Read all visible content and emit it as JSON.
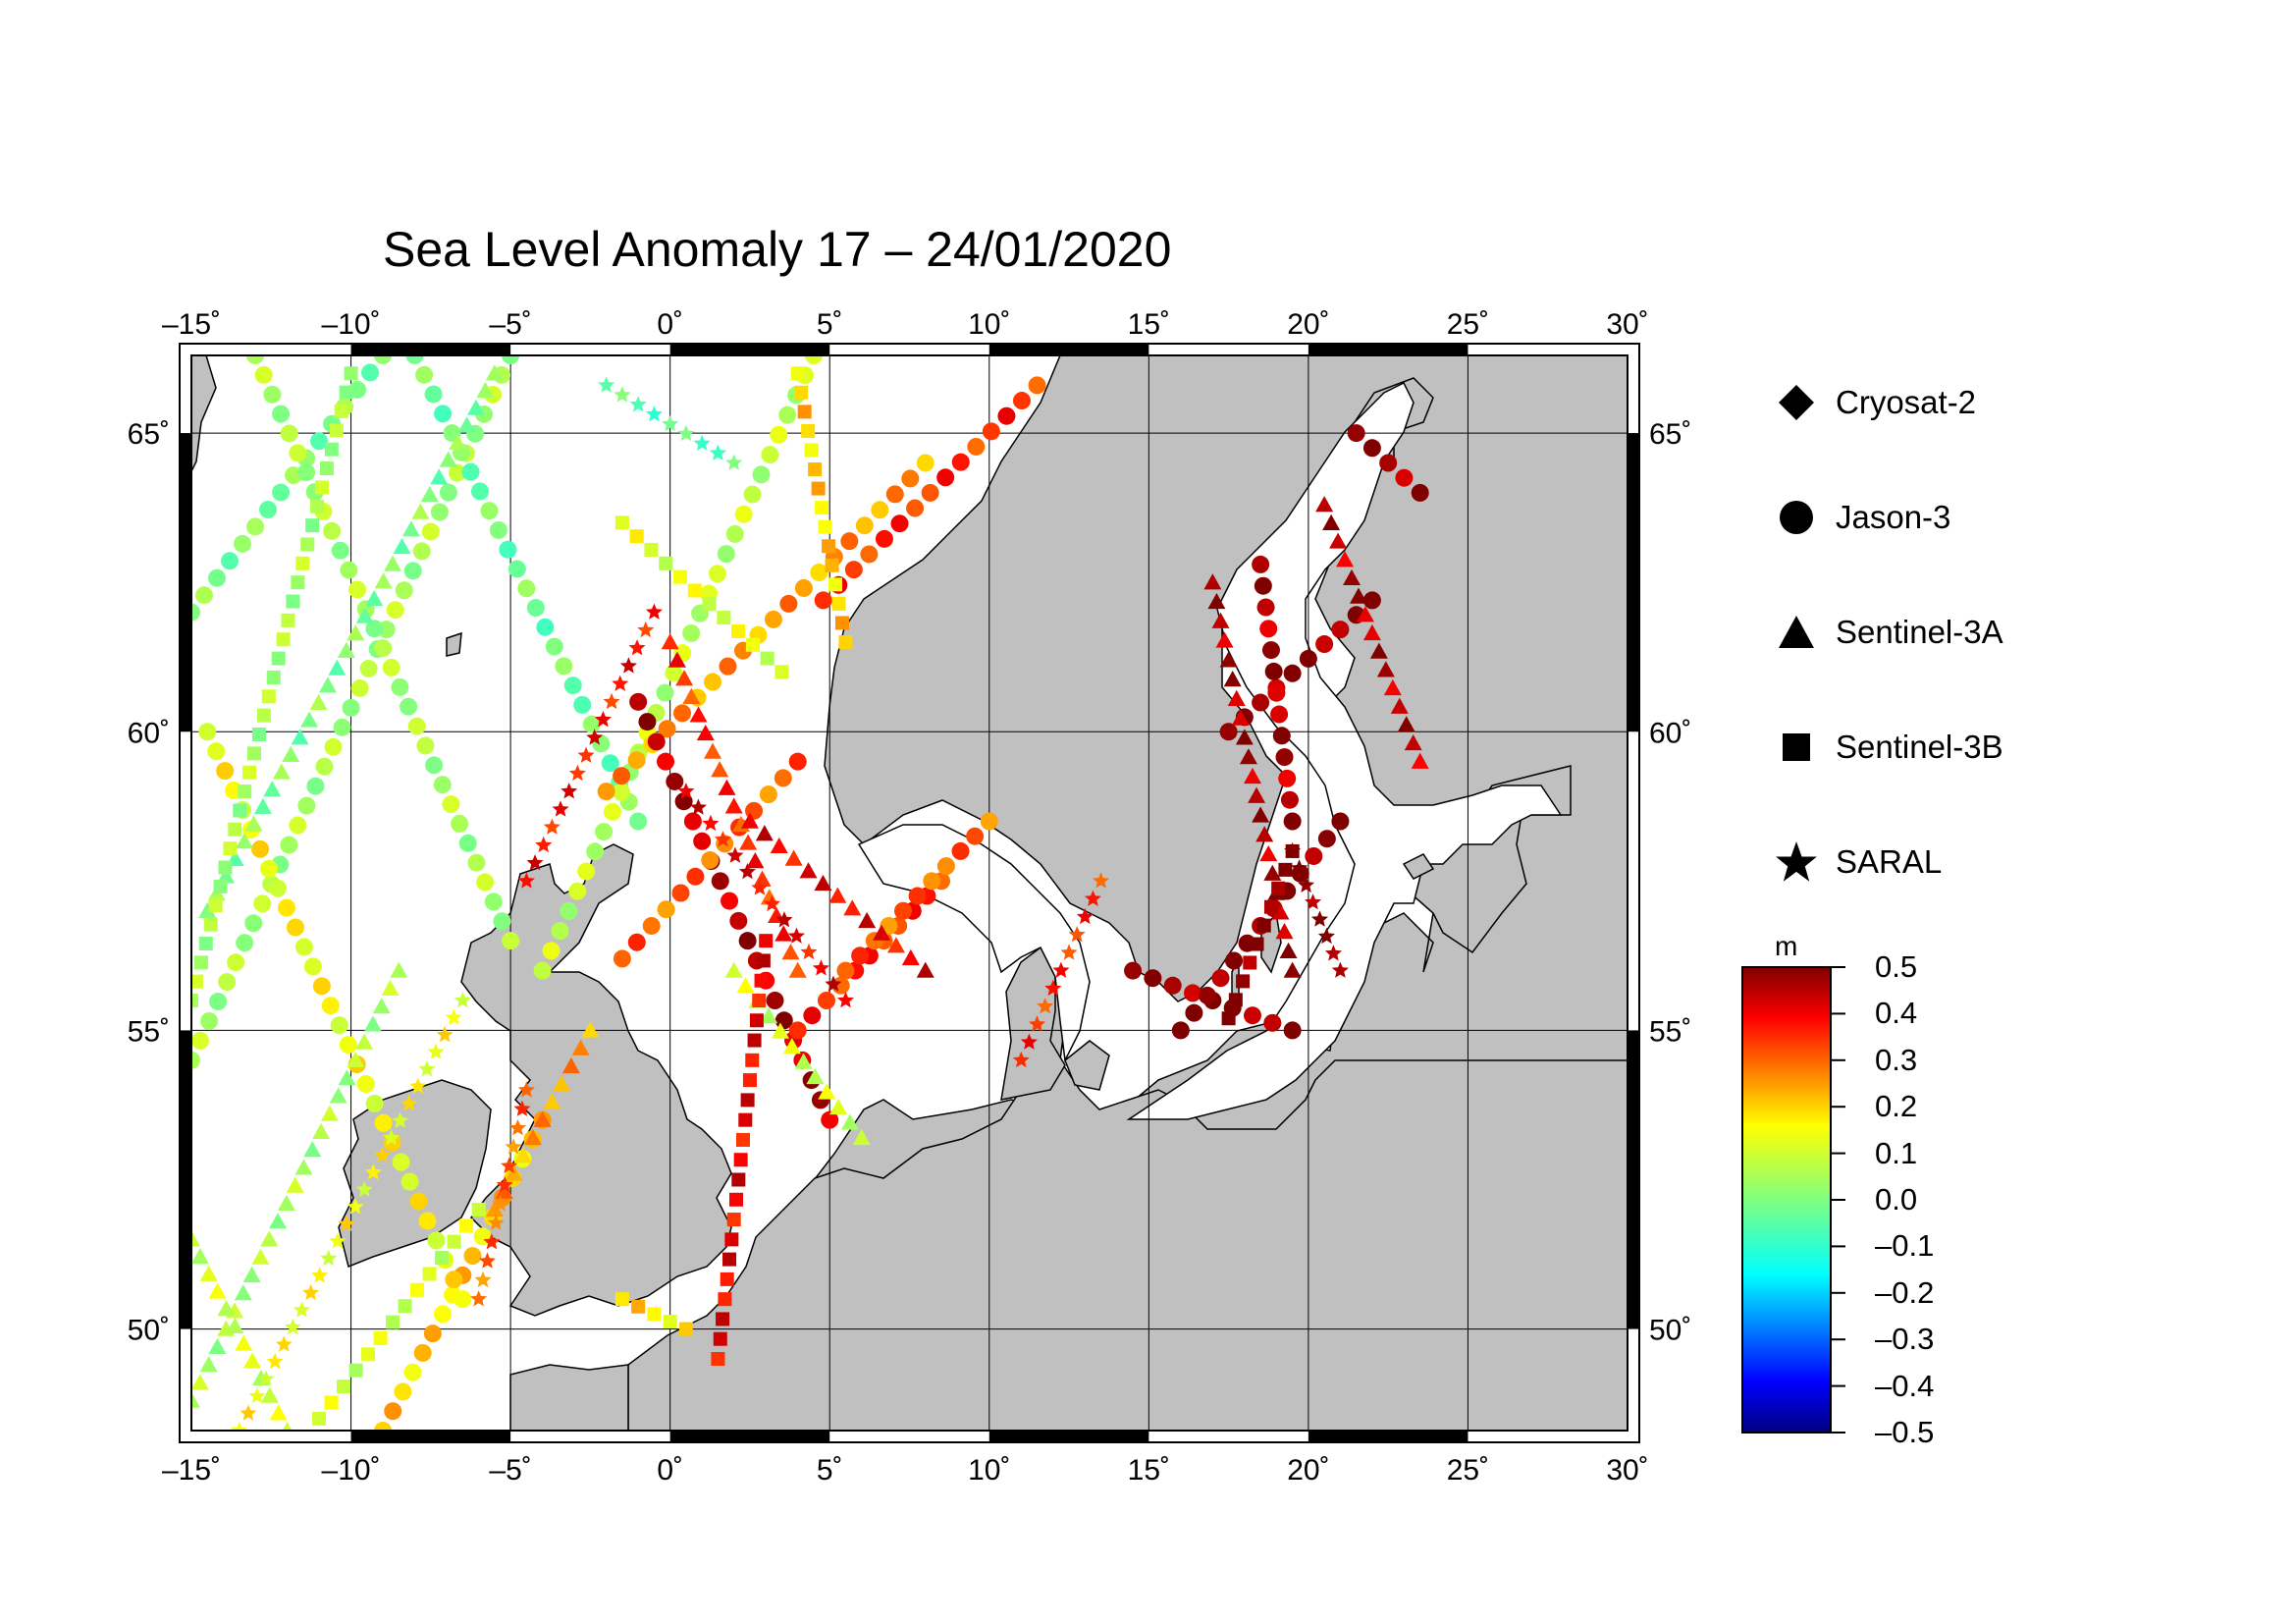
{
  "title": "Sea Level Anomaly 17 – 24/01/2020",
  "map": {
    "lon_range": [
      -15,
      30
    ],
    "lat_range": [
      48.3,
      66.3
    ],
    "lon_ticks": [
      {
        "v": -15,
        "label": "–15˚"
      },
      {
        "v": -10,
        "label": "–10˚"
      },
      {
        "v": -5,
        "label": "–5˚"
      },
      {
        "v": 0,
        "label": "0˚"
      },
      {
        "v": 5,
        "label": "5˚"
      },
      {
        "v": 10,
        "label": "10˚"
      },
      {
        "v": 15,
        "label": "15˚"
      },
      {
        "v": 20,
        "label": "20˚"
      },
      {
        "v": 25,
        "label": "25˚"
      },
      {
        "v": 30,
        "label": "30˚"
      }
    ],
    "lat_ticks": [
      {
        "v": 50,
        "label": "50˚"
      },
      {
        "v": 55,
        "label": "55˚"
      },
      {
        "v": 60,
        "label": "60˚"
      },
      {
        "v": 65,
        "label": "65˚"
      }
    ],
    "land_color": "#c0c0c0",
    "sea_color": "#ffffff"
  },
  "legend": {
    "items": [
      {
        "symbol": "diamond",
        "label": "Cryosat-2"
      },
      {
        "symbol": "circle",
        "label": "Jason-3"
      },
      {
        "symbol": "triangle",
        "label": "Sentinel-3A"
      },
      {
        "symbol": "square",
        "label": "Sentinel-3B"
      },
      {
        "symbol": "star",
        "label": "SARAL"
      }
    ]
  },
  "colorbar": {
    "unit": "m",
    "min": -0.5,
    "max": 0.5,
    "ticks": [
      "0.5",
      "0.4",
      "0.3",
      "0.2",
      "0.1",
      "0.0",
      "–0.1",
      "–0.2",
      "–0.3",
      "–0.4",
      "–0.5"
    ]
  },
  "chart_data": {
    "type": "scatter",
    "title": "Sea Level Anomaly 17 – 24/01/2020",
    "xlim": [
      -15,
      30
    ],
    "ylim": [
      48.3,
      66.3
    ],
    "color_scale": {
      "unit": "m",
      "range": [
        -0.5,
        0.5
      ]
    },
    "tracks": [
      {
        "mission": "Jason-3",
        "from": [
          -15,
          54.5
        ],
        "to": [
          -5,
          66.3
        ],
        "sla": 0.05
      },
      {
        "mission": "Jason-3",
        "from": [
          -15,
          62.0
        ],
        "to": [
          -9,
          66.3
        ],
        "sla": 0.0
      },
      {
        "mission": "Jason-3",
        "from": [
          -13,
          66.3
        ],
        "to": [
          -5,
          56.5
        ],
        "sla": 0.05
      },
      {
        "mission": "Jason-3",
        "from": [
          -8,
          66.3
        ],
        "to": [
          -1,
          58.5
        ],
        "sla": -0.02
      },
      {
        "mission": "Jason-3",
        "from": [
          -4,
          56.0
        ],
        "to": [
          4.5,
          66.3
        ],
        "sla": 0.08
      },
      {
        "mission": "Jason-3",
        "from": [
          -9,
          48.3
        ],
        "to": [
          -4,
          53.5
        ],
        "sla": 0.2
      },
      {
        "mission": "Jason-3",
        "from": [
          -6.5,
          50.5
        ],
        "to": [
          -14.5,
          60.0
        ],
        "sla": 0.15
      },
      {
        "mission": "Jason-3",
        "from": [
          4.8,
          62.2
        ],
        "to": [
          11.5,
          65.8
        ],
        "sla": 0.35
      },
      {
        "mission": "Jason-3",
        "from": [
          -2,
          59.0
        ],
        "to": [
          8,
          64.5
        ],
        "sla": 0.25
      },
      {
        "mission": "Jason-3",
        "from": [
          -1,
          60.5
        ],
        "to": [
          5,
          53.5
        ],
        "sla": 0.45
      },
      {
        "mission": "Jason-3",
        "from": [
          -1.5,
          56.2
        ],
        "to": [
          4.0,
          59.5
        ],
        "sla": 0.3
      },
      {
        "mission": "Jason-3",
        "from": [
          4,
          55.0
        ],
        "to": [
          8.5,
          57.5
        ],
        "sla": 0.35
      },
      {
        "mission": "Jason-3",
        "from": [
          5.5,
          56.0
        ],
        "to": [
          10,
          58.5
        ],
        "sla": 0.3
      },
      {
        "mission": "Jason-3",
        "from": [
          14.5,
          56.0
        ],
        "to": [
          19.5,
          55.0
        ],
        "sla": 0.48
      },
      {
        "mission": "Jason-3",
        "from": [
          16,
          55.0
        ],
        "to": [
          21,
          58.5
        ],
        "sla": 0.5
      },
      {
        "mission": "Jason-3",
        "from": [
          17.5,
          60.0
        ],
        "to": [
          22,
          62.2
        ],
        "sla": 0.48
      },
      {
        "mission": "Jason-3",
        "from": [
          18.5,
          62.8
        ],
        "to": [
          19.5,
          58.5
        ],
        "sla": 0.46
      },
      {
        "mission": "Jason-3",
        "from": [
          21.5,
          65.0
        ],
        "to": [
          23.5,
          64.0
        ],
        "sla": 0.48
      },
      {
        "mission": "Sentinel-3A",
        "from": [
          -15,
          48.8
        ],
        "to": [
          -8.5,
          56.0
        ],
        "sla": 0.05
      },
      {
        "mission": "Sentinel-3A",
        "from": [
          -12,
          48.3
        ],
        "to": [
          -15,
          51.5
        ],
        "sla": 0.1
      },
      {
        "mission": "Sentinel-3A",
        "from": [
          -14.5,
          57.0
        ],
        "to": [
          -5.5,
          66.0
        ],
        "sla": 0.0
      },
      {
        "mission": "Sentinel-3A",
        "from": [
          0,
          61.5
        ],
        "to": [
          4,
          56.0
        ],
        "sla": 0.35
      },
      {
        "mission": "Sentinel-3A",
        "from": [
          2.5,
          58.5
        ],
        "to": [
          8,
          56.0
        ],
        "sla": 0.4
      },
      {
        "mission": "Sentinel-3A",
        "from": [
          2,
          56.0
        ],
        "to": [
          6,
          53.2
        ],
        "sla": 0.1
      },
      {
        "mission": "Sentinel-3A",
        "from": [
          17.0,
          62.5
        ],
        "to": [
          19.5,
          56.0
        ],
        "sla": 0.46
      },
      {
        "mission": "Sentinel-3A",
        "from": [
          20.5,
          63.8
        ],
        "to": [
          23.5,
          59.5
        ],
        "sla": 0.45
      },
      {
        "mission": "Sentinel-3A",
        "from": [
          -5.5,
          52.0
        ],
        "to": [
          -2.5,
          55.0
        ],
        "sla": 0.25
      },
      {
        "mission": "Sentinel-3B",
        "from": [
          -15,
          55.5
        ],
        "to": [
          -10,
          66.0
        ],
        "sla": 0.05
      },
      {
        "mission": "Sentinel-3B",
        "from": [
          -11,
          48.5
        ],
        "to": [
          -6,
          52.0
        ],
        "sla": 0.1
      },
      {
        "mission": "Sentinel-3B",
        "from": [
          3,
          56.5
        ],
        "to": [
          1.5,
          49.5
        ],
        "sla": 0.4
      },
      {
        "mission": "Sentinel-3B",
        "from": [
          5.5,
          61.5
        ],
        "to": [
          4,
          66.0
        ],
        "sla": 0.2
      },
      {
        "mission": "Sentinel-3B",
        "from": [
          -1.5,
          63.5
        ],
        "to": [
          3.5,
          61.0
        ],
        "sla": 0.12
      },
      {
        "mission": "Sentinel-3B",
        "from": [
          -1.5,
          50.5
        ],
        "to": [
          0.5,
          50.0
        ],
        "sla": 0.18
      },
      {
        "mission": "Sentinel-3B",
        "from": [
          17.5,
          55.2
        ],
        "to": [
          19.5,
          58.0
        ],
        "sla": 0.5
      },
      {
        "mission": "SARAL",
        "from": [
          -4.5,
          57.5
        ],
        "to": [
          -0.5,
          62.0
        ],
        "sla": 0.38
      },
      {
        "mission": "SARAL",
        "from": [
          0.5,
          59.0
        ],
        "to": [
          5.5,
          55.5
        ],
        "sla": 0.4
      },
      {
        "mission": "SARAL",
        "from": [
          -13.5,
          48.3
        ],
        "to": [
          -6.5,
          55.5
        ],
        "sla": 0.15
      },
      {
        "mission": "SARAL",
        "from": [
          -4.5,
          54.0
        ],
        "to": [
          -6.0,
          50.5
        ],
        "sla": 0.3
      },
      {
        "mission": "SARAL",
        "from": [
          19.5,
          58.0
        ],
        "to": [
          21.0,
          56.0
        ],
        "sla": 0.5
      },
      {
        "mission": "SARAL",
        "from": [
          11,
          54.5
        ],
        "to": [
          13.5,
          57.5
        ],
        "sla": 0.35
      },
      {
        "mission": "SARAL",
        "from": [
          -2,
          65.8
        ],
        "to": [
          2,
          64.5
        ],
        "sla": -0.05
      }
    ]
  }
}
